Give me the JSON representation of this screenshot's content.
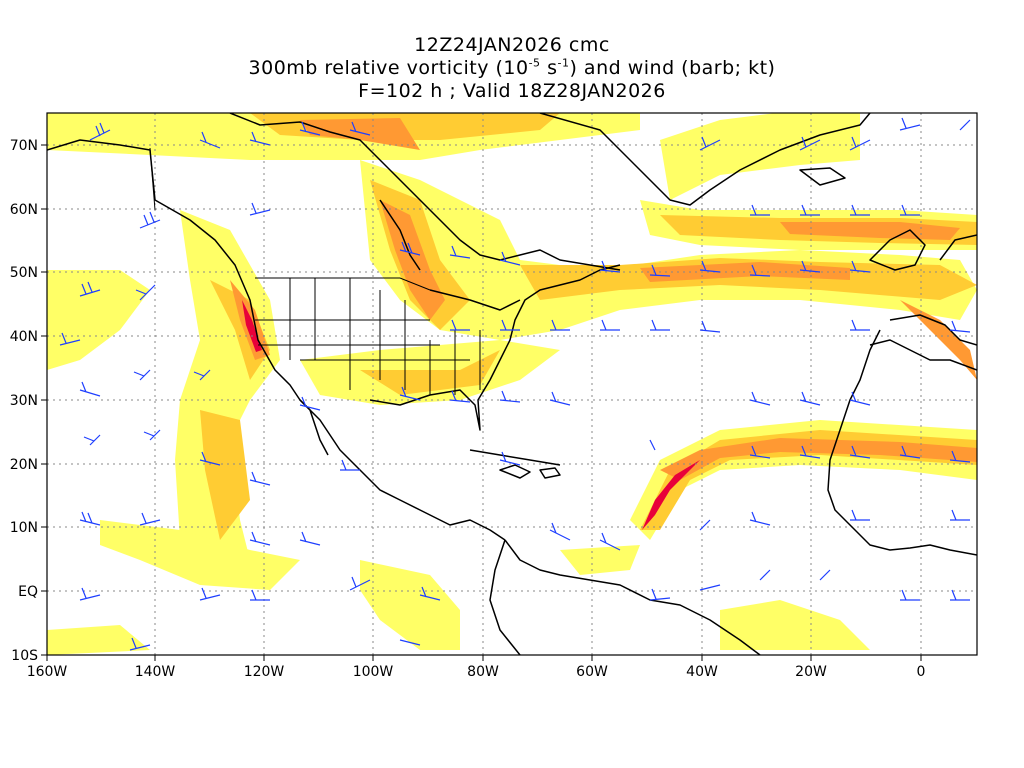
{
  "title": {
    "line1": "12Z24JAN2026 cmc",
    "line2_pre": "300mb relative vorticity (10",
    "line2_exp1": "-5",
    "line2_mid": " s",
    "line2_exp2": "-1",
    "line2_post": ") and wind (barb; kt)",
    "line3": "F=102 h ; Valid 18Z28JAN2026"
  },
  "map": {
    "lon_range": [
      -160,
      10
    ],
    "lat_range": [
      -10,
      75
    ],
    "lon_ticks": [
      "160W",
      "140W",
      "120W",
      "100W",
      "80W",
      "60W",
      "40W",
      "20W",
      "0"
    ],
    "lat_ticks": [
      "70N",
      "60N",
      "50N",
      "40N",
      "30N",
      "20N",
      "10N",
      "EQ",
      "10S"
    ],
    "grid": true,
    "grid_style": "dotted",
    "colors": {
      "vorticity_low": "#ffff66",
      "vorticity_mid": "#ffcc33",
      "vorticity_high": "#ff9900",
      "vorticity_peak": "#e8003a",
      "barbs": "#1f3fff",
      "coastline": "#000000"
    }
  }
}
